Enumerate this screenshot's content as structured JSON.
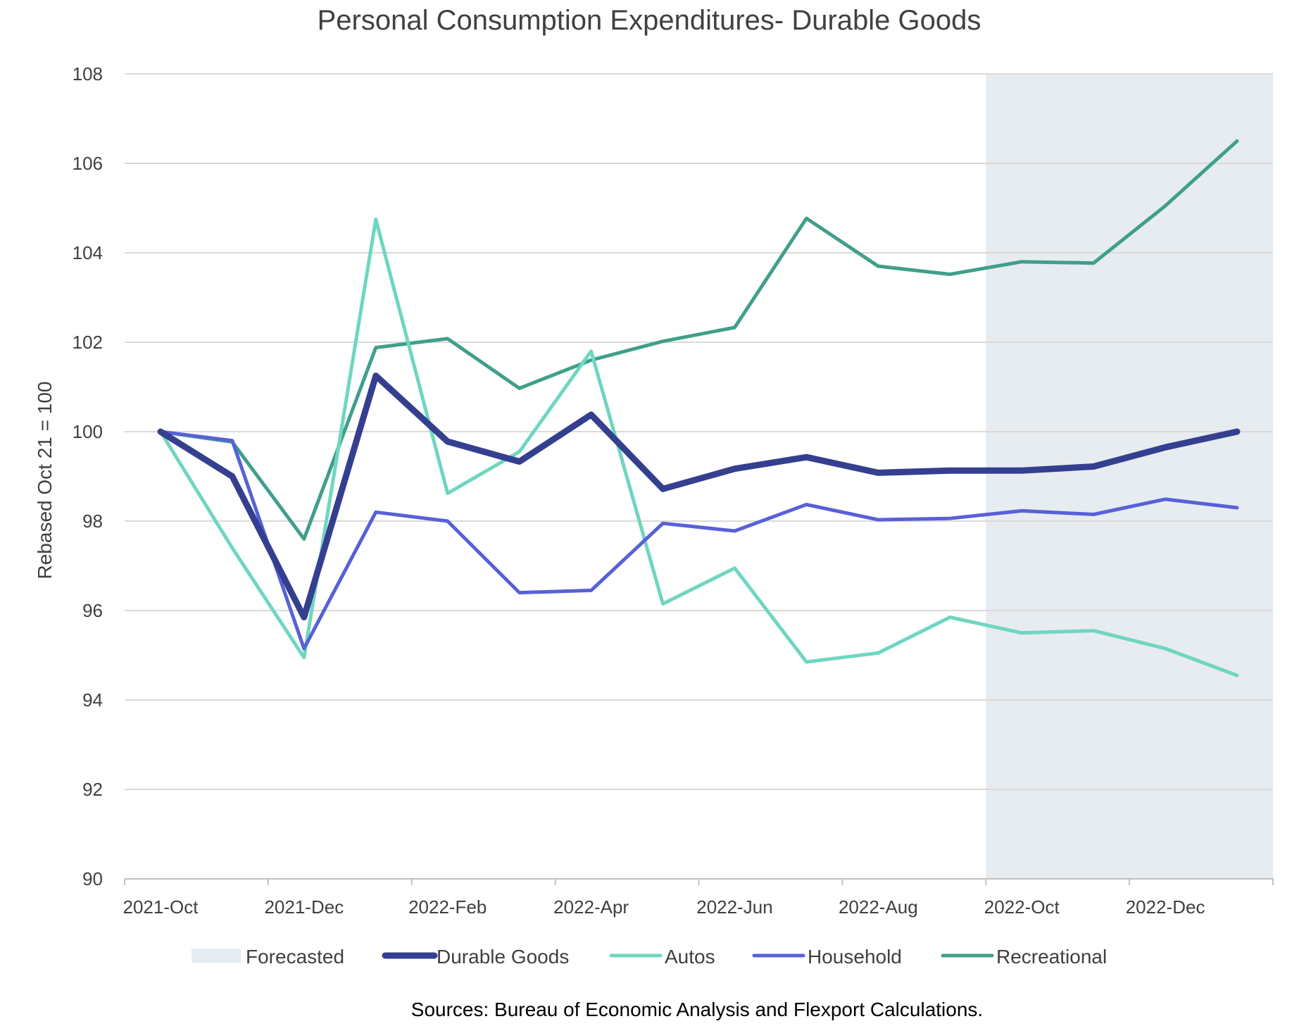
{
  "chart_data": {
    "type": "line",
    "title": "Personal Consumption Expenditures- Durable Goods",
    "ylabel": "Rebased Oct 21 = 100",
    "xlabel": "",
    "ylim": [
      90,
      108
    ],
    "yticks": [
      90,
      92,
      94,
      96,
      98,
      100,
      102,
      104,
      106,
      108
    ],
    "categories": [
      "2021-Oct",
      "2021-Nov",
      "2021-Dec",
      "2022-Jan",
      "2022-Feb",
      "2022-Mar",
      "2022-Apr",
      "2022-May",
      "2022-Jun",
      "2022-Jul",
      "2022-Aug",
      "2022-Sep",
      "2022-Oct",
      "2022-Nov",
      "2022-Dec",
      "2023-Jan"
    ],
    "xtick_labels": [
      "2021-Oct",
      "2021-Dec",
      "2022-Feb",
      "2022-Apr",
      "2022-Jun",
      "2022-Aug",
      "2022-Oct",
      "2022-Dec"
    ],
    "forecast": {
      "label": "Forecasted",
      "color": "#e7ecf1",
      "start_category_index": 11.5,
      "end_category_index": 15.5
    },
    "series": [
      {
        "name": "Durable Goods",
        "color": "#353f8f",
        "values": [
          100.0,
          99.0,
          95.85,
          101.25,
          99.78,
          99.33,
          100.38,
          98.72,
          99.17,
          99.43,
          99.08,
          99.13,
          99.13,
          99.22,
          99.65,
          100.0
        ]
      },
      {
        "name": "Autos",
        "color": "#6fd6c0",
        "values": [
          100.0,
          97.4,
          94.95,
          104.75,
          98.62,
          99.55,
          101.8,
          96.15,
          96.95,
          94.85,
          95.05,
          95.85,
          95.5,
          95.55,
          95.15,
          94.55
        ]
      },
      {
        "name": "Household",
        "color": "#5860d8",
        "values": [
          100.0,
          99.8,
          95.15,
          98.2,
          98.0,
          96.4,
          96.45,
          97.95,
          97.78,
          98.37,
          98.03,
          98.06,
          98.23,
          98.15,
          98.49,
          98.3
        ]
      },
      {
        "name": "Recreational",
        "color": "#3f9f8a",
        "values": [
          100.0,
          99.77,
          97.6,
          101.88,
          102.08,
          100.97,
          101.6,
          102.02,
          102.33,
          104.77,
          103.7,
          103.52,
          103.8,
          103.77,
          105.05,
          106.5
        ]
      }
    ],
    "legend_position": "bottom",
    "source": "Sources: Bureau of Economic Analysis and Flexport Calculations."
  }
}
